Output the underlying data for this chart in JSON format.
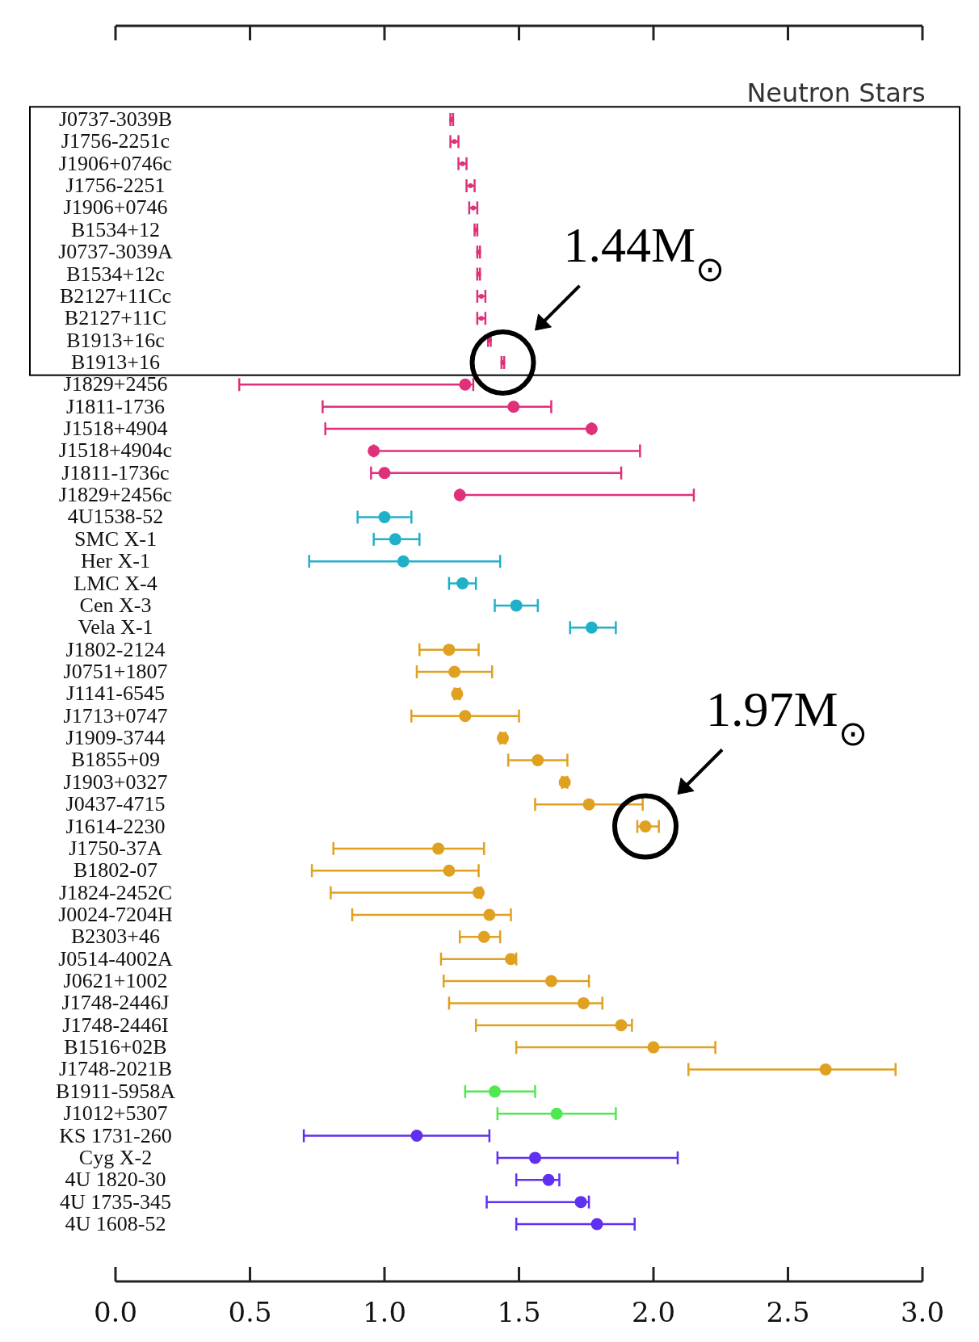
{
  "chart_data": {
    "type": "scatter",
    "orientation": "horizontal",
    "xlim": [
      0,
      3
    ],
    "xticks": [
      {
        "value": 0,
        "label": "0.0"
      },
      {
        "value": 0.5,
        "label": "0.5"
      },
      {
        "value": 1,
        "label": "1.0"
      },
      {
        "value": 1.5,
        "label": "1.5"
      },
      {
        "value": 2,
        "label": "2.0"
      },
      {
        "value": 2.5,
        "label": "2.5"
      },
      {
        "value": 3,
        "label": "3.0"
      }
    ],
    "grid": false,
    "marker": "circle",
    "categories": [
      "J0737-3039B",
      "J1756-2251c",
      "J1906+0746c",
      "J1756-2251",
      "J1906+0746",
      "B1534+12",
      "J0737-3039A",
      "B1534+12c",
      "B2127+11Cc",
      "B2127+11C",
      "B1913+16c",
      "B1913+16",
      "J1829+2456",
      "J1811-1736",
      "J1518+4904",
      "J1518+4904c",
      "J1811-1736c",
      "J1829+2456c",
      "4U1538-52",
      "SMC X-1",
      "Her X-1",
      "LMC X-4",
      "Cen X-3",
      "Vela X-1",
      "J1802-2124",
      "J0751+1807",
      "J1141-6545",
      "J1713+0747",
      "J1909-3744",
      "B1855+09",
      "J1903+0327",
      "J0437-4715",
      "J1614-2230",
      "J1750-37A",
      "B1802-07",
      "J1824-2452C",
      "J0024-7204H",
      "B2303+46",
      "J0514-4002A",
      "J0621+1002",
      "J1748-2446J",
      "J1748-2446I",
      "B1516+02B",
      "J1748-2021B",
      "B1911-5958A",
      "J1012+5307",
      "KS 1731-260",
      "Cyg X-2",
      "4U 1820-30",
      "4U 1735-345",
      "4U 1608-52"
    ],
    "series": [
      {
        "color": "#e0307a",
        "values": [
          1.25,
          1.26,
          1.29,
          1.32,
          1.33,
          1.34,
          1.35,
          1.35,
          1.36,
          1.36,
          1.39,
          1.44,
          null,
          null,
          null,
          null,
          null,
          null,
          null,
          null,
          null,
          null,
          null,
          null,
          null,
          null,
          null,
          null,
          null,
          null,
          null,
          null,
          null,
          null,
          null,
          null,
          null,
          null,
          null,
          null,
          null,
          null,
          null,
          null,
          null,
          null,
          null,
          null,
          null,
          null,
          null
        ],
        "errors": [
          [
            1.245,
            1.255
          ],
          [
            1.245,
            1.275
          ],
          [
            1.275,
            1.305
          ],
          [
            1.305,
            1.335
          ],
          [
            1.315,
            1.345
          ],
          [
            1.335,
            1.345
          ],
          [
            1.345,
            1.355
          ],
          [
            1.345,
            1.355
          ],
          [
            1.345,
            1.375
          ],
          [
            1.345,
            1.375
          ],
          [
            1.385,
            1.395
          ],
          [
            1.435,
            1.445
          ],
          null,
          null,
          null,
          null,
          null,
          null,
          null,
          null,
          null,
          null,
          null,
          null,
          null,
          null,
          null,
          null,
          null,
          null,
          null,
          null,
          null,
          null,
          null,
          null,
          null,
          null,
          null,
          null,
          null,
          null,
          null,
          null,
          null,
          null,
          null,
          null,
          null,
          null,
          null
        ]
      },
      {
        "values": [
          null,
          null,
          null,
          null,
          null,
          null,
          null,
          null,
          null,
          null,
          null,
          null,
          1.3,
          1.48,
          1.77,
          0.96,
          1.0,
          1.28,
          1.0,
          1.04,
          1.07,
          1.29,
          1.49,
          1.77,
          1.24,
          1.26,
          1.27,
          1.3,
          1.44,
          1.57,
          1.67,
          1.76,
          1.97,
          1.2,
          1.24,
          1.35,
          1.39,
          1.37,
          1.47,
          1.62,
          1.74,
          1.88,
          2.0,
          2.64,
          1.41,
          1.64,
          1.12,
          1.56,
          1.61,
          1.73,
          1.79
        ],
        "errors": [
          null,
          null,
          null,
          null,
          null,
          null,
          null,
          null,
          null,
          null,
          null,
          null,
          [
            0.46,
            1.33
          ],
          [
            0.77,
            1.62
          ],
          [
            0.78,
            1.77
          ],
          [
            0.96,
            1.95
          ],
          [
            0.95,
            1.88
          ],
          [
            1.28,
            2.15
          ],
          [
            0.9,
            1.1
          ],
          [
            0.96,
            1.13
          ],
          [
            0.72,
            1.43
          ],
          [
            1.24,
            1.34
          ],
          [
            1.41,
            1.57
          ],
          [
            1.69,
            1.86
          ],
          [
            1.13,
            1.35
          ],
          [
            1.12,
            1.4
          ],
          [
            1.26,
            1.28
          ],
          [
            1.1,
            1.5
          ],
          [
            1.43,
            1.45
          ],
          [
            1.46,
            1.68
          ],
          [
            1.66,
            1.68
          ],
          [
            1.56,
            1.96
          ],
          [
            1.94,
            2.02
          ],
          [
            0.81,
            1.37
          ],
          [
            0.73,
            1.35
          ],
          [
            0.8,
            1.36
          ],
          [
            0.88,
            1.47
          ],
          [
            1.28,
            1.43
          ],
          [
            1.21,
            1.49
          ],
          [
            1.22,
            1.76
          ],
          [
            1.24,
            1.81
          ],
          [
            1.34,
            1.92
          ],
          [
            1.49,
            2.23
          ],
          [
            2.13,
            2.9
          ],
          [
            1.3,
            1.56
          ],
          [
            1.42,
            1.86
          ],
          [
            0.7,
            1.39
          ],
          [
            1.42,
            2.09
          ],
          [
            1.49,
            1.65
          ],
          [
            1.38,
            1.76
          ],
          [
            1.49,
            1.93
          ]
        ],
        "colors": [
          null,
          null,
          null,
          null,
          null,
          null,
          null,
          null,
          null,
          null,
          null,
          null,
          "#e0307a",
          "#e0307a",
          "#e0307a",
          "#e0307a",
          "#e0307a",
          "#e0307a",
          "#20b0c8",
          "#20b0c8",
          "#20b0c8",
          "#20b0c8",
          "#20b0c8",
          "#20b0c8",
          "#e0a020",
          "#e0a020",
          "#e0a020",
          "#e0a020",
          "#e0a020",
          "#e0a020",
          "#e0a020",
          "#e0a020",
          "#e0a020",
          "#e0a020",
          "#e0a020",
          "#e0a020",
          "#e0a020",
          "#e0a020",
          "#e0a020",
          "#e0a020",
          "#e0a020",
          "#e0a020",
          "#e0a020",
          "#e0a020",
          "#50e850",
          "#50e850",
          "#6030f0",
          "#6030f0",
          "#6030f0",
          "#6030f0",
          "#6030f0"
        ]
      }
    ],
    "annotations": [
      "Neutron Stars",
      {
        "text": "1.44M$_{⊙}$",
        "x": 1.44,
        "y": "B1913+16"
      },
      {
        "text": "1.97M$_{⊙}$",
        "x": 1.97,
        "y": "J1614-2230"
      }
    ]
  }
}
